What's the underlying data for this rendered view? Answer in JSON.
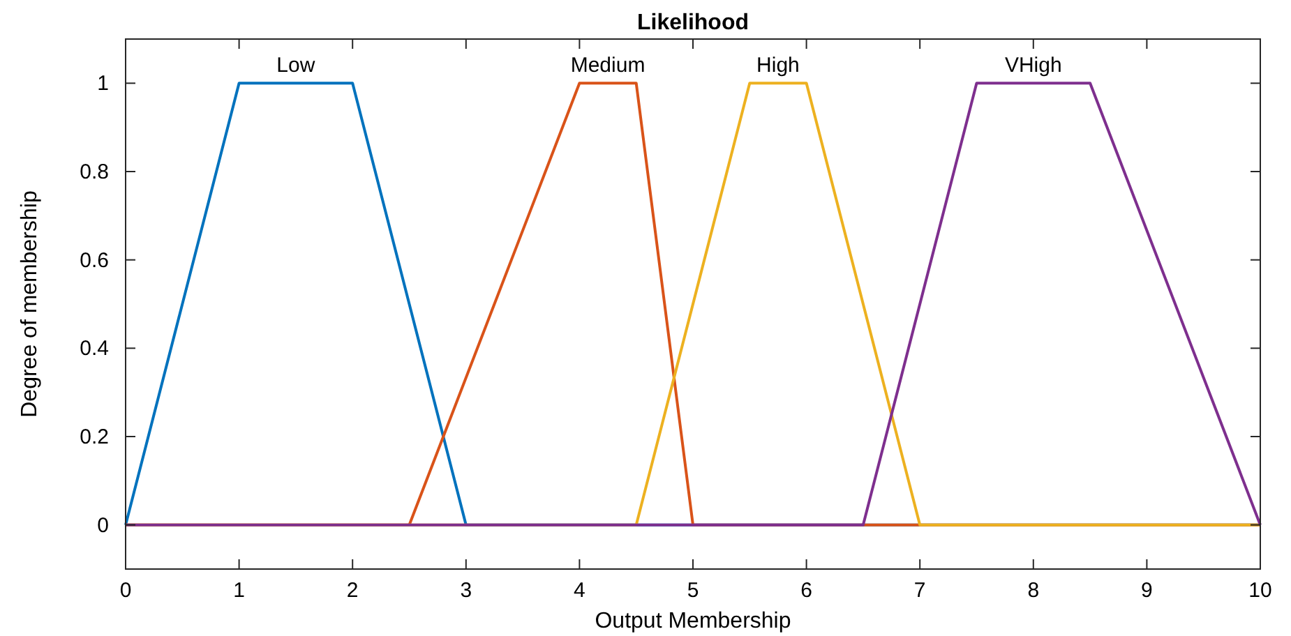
{
  "chart_data": {
    "type": "line",
    "title": "Likelihood",
    "xlabel": "Output Membership",
    "ylabel": "Degree of membership",
    "xlim": [
      0,
      10
    ],
    "xticks": [
      0,
      1,
      2,
      3,
      4,
      5,
      6,
      7,
      8,
      9,
      10
    ],
    "ylim": [
      -0.1,
      1.1
    ],
    "yticks": [
      0,
      0.2,
      0.4,
      0.6,
      0.8,
      1
    ],
    "grid": false,
    "marker": "none",
    "line_style": "solid",
    "series": [
      {
        "name": "Low",
        "color": "#0072bd",
        "x": [
          0,
          1,
          2,
          3,
          10
        ],
        "values": [
          0,
          1,
          1,
          0,
          0
        ]
      },
      {
        "name": "Medium",
        "color": "#d95319",
        "x": [
          0,
          2.5,
          4,
          4.5,
          5,
          10
        ],
        "values": [
          0,
          0,
          1,
          1,
          0,
          0
        ]
      },
      {
        "name": "High",
        "color": "#edb120",
        "x": [
          0,
          4.5,
          5.5,
          6,
          7,
          10
        ],
        "values": [
          0,
          0,
          1,
          1,
          0,
          0
        ]
      },
      {
        "name": "VHigh",
        "color": "#7e2f8e",
        "x": [
          0,
          6.5,
          7.5,
          8.5,
          10
        ],
        "values": [
          0,
          0,
          1,
          1,
          0
        ]
      }
    ]
  }
}
